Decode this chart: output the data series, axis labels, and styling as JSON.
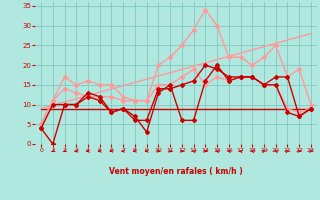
{
  "bg_color": "#b0e8e0",
  "grid_color": "#80c8c0",
  "xlabel": "Vent moyen/en rafales ( km/h )",
  "xlabel_color": "#cc0000",
  "ylabel_color": "#cc0000",
  "tick_color": "#cc0000",
  "xlim": [
    -0.5,
    23.5
  ],
  "ylim": [
    0,
    36
  ],
  "yticks": [
    0,
    5,
    10,
    15,
    20,
    25,
    30,
    35
  ],
  "xticks": [
    0,
    1,
    2,
    3,
    4,
    5,
    6,
    7,
    8,
    9,
    10,
    11,
    12,
    13,
    14,
    15,
    16,
    17,
    18,
    19,
    20,
    21,
    22,
    23
  ],
  "lines": [
    {
      "x": [
        0,
        1,
        2,
        3,
        4,
        5,
        6,
        7,
        8,
        9,
        10,
        11,
        12,
        13,
        14,
        15,
        16,
        17,
        18,
        19,
        20,
        21,
        22,
        23
      ],
      "y": [
        5,
        11,
        14,
        13,
        12,
        12,
        12,
        11,
        11,
        11,
        15,
        15,
        17,
        19,
        15,
        17,
        16,
        17,
        17,
        15,
        15,
        9,
        8,
        9
      ],
      "color": "#ff9999",
      "lw": 1.0,
      "marker": "D",
      "ms": 2.0
    },
    {
      "x": [
        0,
        1,
        2,
        3,
        4,
        5,
        6,
        7,
        8,
        9,
        10,
        11,
        12,
        13,
        14,
        15,
        16,
        17,
        18,
        19,
        20,
        21,
        22,
        23
      ],
      "y": [
        5,
        11,
        17,
        15,
        16,
        15,
        15,
        12,
        11,
        11,
        20,
        22,
        25,
        29,
        34,
        30,
        22,
        22,
        20,
        22,
        25,
        17,
        19,
        10
      ],
      "color": "#ff9999",
      "lw": 1.0,
      "marker": "D",
      "ms": 2.0
    },
    {
      "x": [
        0,
        1,
        2,
        3,
        4,
        5,
        6,
        7,
        8,
        9,
        10,
        11,
        12,
        13,
        14,
        15,
        16,
        17,
        18,
        19,
        20,
        21,
        22,
        23
      ],
      "y": [
        4,
        0,
        10,
        10,
        13,
        12,
        8,
        9,
        7,
        3,
        13,
        15,
        6,
        6,
        16,
        20,
        16,
        17,
        17,
        15,
        15,
        8,
        7,
        9
      ],
      "color": "#cc0000",
      "lw": 1.0,
      "marker": "D",
      "ms": 2.0
    },
    {
      "x": [
        0,
        1,
        2,
        3,
        4,
        5,
        6,
        7,
        8,
        9,
        10,
        11,
        12,
        13,
        14,
        15,
        16,
        17,
        18,
        19,
        20,
        21,
        22,
        23
      ],
      "y": [
        4,
        10,
        10,
        10,
        12,
        11,
        8,
        9,
        6,
        6,
        14,
        14,
        15,
        16,
        20,
        19,
        17,
        17,
        17,
        15,
        17,
        17,
        7,
        9
      ],
      "color": "#cc0000",
      "lw": 1.0,
      "marker": "D",
      "ms": 2.0
    },
    {
      "x": [
        0,
        23
      ],
      "y": [
        9,
        9
      ],
      "color": "#cc0000",
      "lw": 1.0,
      "marker": null,
      "ms": 0
    },
    {
      "x": [
        0,
        23
      ],
      "y": [
        9,
        28
      ],
      "color": "#ff9999",
      "lw": 1.0,
      "marker": null,
      "ms": 0
    }
  ],
  "wind_arrows_x": [
    1,
    2,
    3,
    4,
    5,
    6,
    7,
    8,
    9,
    10,
    11,
    12,
    13,
    14,
    15,
    16,
    17,
    18,
    19,
    20,
    21,
    22,
    23
  ],
  "wind_angles_deg": [
    225,
    225,
    270,
    270,
    270,
    270,
    270,
    270,
    270,
    90,
    90,
    90,
    315,
    90,
    315,
    315,
    315,
    315,
    45,
    315,
    45,
    90,
    90
  ]
}
